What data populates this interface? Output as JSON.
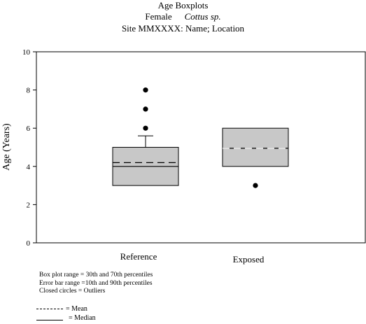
{
  "header": {
    "title": "Age Boxplots",
    "sex": "Female",
    "species": "Cottus sp.",
    "site": "Site MMXXXX: Name; Location"
  },
  "notes": {
    "box_range": "Box plot range = 30th and 70th percentiles",
    "error_range": "Error bar range =10th and 90th percentiles",
    "outliers": "Closed circles = Outliers"
  },
  "legend": {
    "mean": "= Mean",
    "median": "= Median"
  },
  "chart_data": {
    "type": "boxplot",
    "ylabel": "Age (Years)",
    "ylim": [
      0,
      10
    ],
    "yticks": [
      "0",
      "2",
      "4",
      "6",
      "8",
      "10"
    ],
    "grid": false,
    "box_color": "#c8c8c8",
    "groups": [
      {
        "category": "Reference",
        "box_low": 3.0,
        "box_high": 5.0,
        "median": 4.0,
        "mean": 4.2,
        "whisker_low": 3.0,
        "whisker_high": 5.6,
        "outliers": [
          6.0,
          7.0,
          8.0
        ]
      },
      {
        "category": "Exposed",
        "box_low": 4.0,
        "box_high": 6.0,
        "median": 4.95,
        "mean": 4.95,
        "whisker_low": 4.0,
        "whisker_high": 6.0,
        "outliers": [
          3.0
        ]
      }
    ]
  }
}
